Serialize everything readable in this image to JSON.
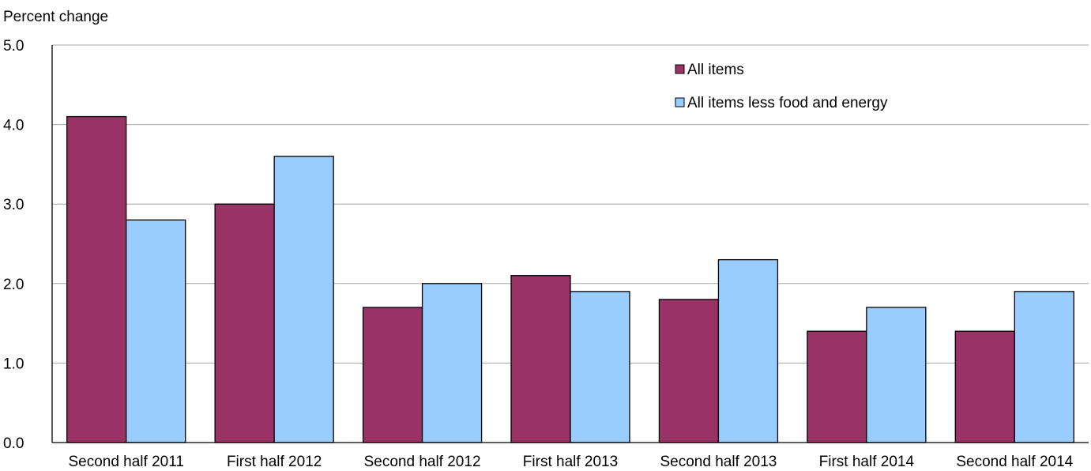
{
  "chart_data": {
    "type": "bar",
    "ylabel": "Percent change",
    "ylim": [
      0,
      5
    ],
    "yticks": [
      "0.0",
      "1.0",
      "2.0",
      "3.0",
      "4.0",
      "5.0"
    ],
    "grid": true,
    "legend_position": "top-right",
    "categories": [
      "Second half 2011",
      "First half 2012",
      "Second half 2012",
      "First half 2013",
      "Second half 2013",
      "First half 2014",
      "Second half 2014"
    ],
    "series": [
      {
        "name": "All items",
        "color": "#993366",
        "values": [
          4.1,
          3.0,
          1.7,
          2.1,
          1.8,
          1.4,
          1.4
        ]
      },
      {
        "name": "All items less food and energy",
        "color": "#99CCFF",
        "values": [
          2.8,
          3.6,
          2.0,
          1.9,
          2.3,
          1.7,
          1.9
        ]
      }
    ]
  }
}
